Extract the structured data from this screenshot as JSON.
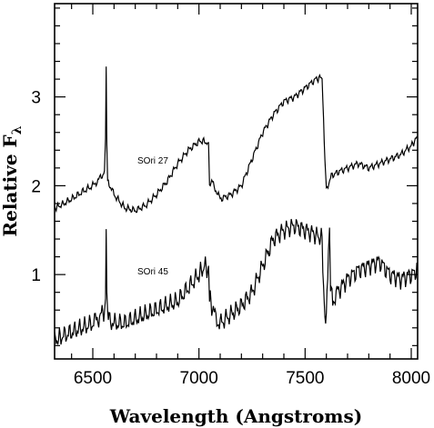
{
  "chart_data": {
    "type": "line",
    "xlabel": "Wavelength (Angstroms)",
    "ylabel": "Relative F",
    "ylabel_subscript": "λ",
    "xlim": [
      6320,
      8030
    ],
    "ylim": [
      0.05,
      4.05
    ],
    "xticks": [
      6500,
      7000,
      7500,
      8000
    ],
    "yticks": [
      1,
      2,
      3
    ],
    "grid": false,
    "legend": "none",
    "annotations": [
      {
        "text": "SOri 27",
        "x": 6710,
        "y": 2.25
      },
      {
        "text": "SOri 45",
        "x": 6710,
        "y": 1.0
      }
    ],
    "series": [
      {
        "name": "SOri 27",
        "x": [
          6320,
          6350,
          6400,
          6450,
          6500,
          6520,
          6540,
          6555,
          6560,
          6563,
          6566,
          6570,
          6580,
          6600,
          6650,
          6700,
          6750,
          6800,
          6850,
          6900,
          6950,
          7000,
          7030,
          7045,
          7050,
          7060,
          7080,
          7100,
          7150,
          7200,
          7250,
          7300,
          7350,
          7400,
          7450,
          7500,
          7550,
          7580,
          7590,
          7600,
          7620,
          7650,
          7700,
          7750,
          7800,
          7850,
          7900,
          7950,
          8000,
          8030
        ],
        "y": [
          1.75,
          1.78,
          1.85,
          1.93,
          2.0,
          2.05,
          2.1,
          2.15,
          2.5,
          3.35,
          2.5,
          2.05,
          2.0,
          1.9,
          1.75,
          1.72,
          1.78,
          1.9,
          2.05,
          2.25,
          2.4,
          2.5,
          2.5,
          2.45,
          2.0,
          2.05,
          1.95,
          1.85,
          1.9,
          2.0,
          2.3,
          2.6,
          2.8,
          2.95,
          3.0,
          3.1,
          3.2,
          3.22,
          2.5,
          1.95,
          2.1,
          2.15,
          2.2,
          2.25,
          2.2,
          2.25,
          2.3,
          2.35,
          2.45,
          2.55
        ]
      },
      {
        "name": "SOri 45",
        "x": [
          6320,
          6350,
          6400,
          6450,
          6500,
          6520,
          6540,
          6555,
          6560,
          6563,
          6566,
          6570,
          6580,
          6600,
          6650,
          6700,
          6750,
          6800,
          6850,
          6900,
          6950,
          7000,
          7030,
          7045,
          7050,
          7060,
          7080,
          7100,
          7150,
          7200,
          7250,
          7300,
          7350,
          7400,
          7450,
          7500,
          7550,
          7580,
          7590,
          7600,
          7610,
          7615,
          7620,
          7630,
          7650,
          7700,
          7750,
          7800,
          7850,
          7900,
          7950,
          8000,
          8030
        ],
        "y": [
          0.25,
          0.3,
          0.35,
          0.4,
          0.45,
          0.5,
          0.55,
          0.6,
          0.8,
          1.5,
          0.8,
          0.6,
          0.5,
          0.45,
          0.45,
          0.5,
          0.55,
          0.6,
          0.65,
          0.7,
          0.85,
          1.0,
          1.1,
          1.05,
          0.75,
          0.65,
          0.5,
          0.45,
          0.55,
          0.65,
          0.8,
          1.1,
          1.4,
          1.5,
          1.55,
          1.5,
          1.45,
          1.4,
          0.6,
          0.5,
          1.3,
          1.6,
          0.9,
          0.7,
          0.8,
          0.95,
          1.05,
          1.1,
          1.15,
          1.0,
          0.95,
          1.0,
          1.05
        ]
      }
    ]
  }
}
